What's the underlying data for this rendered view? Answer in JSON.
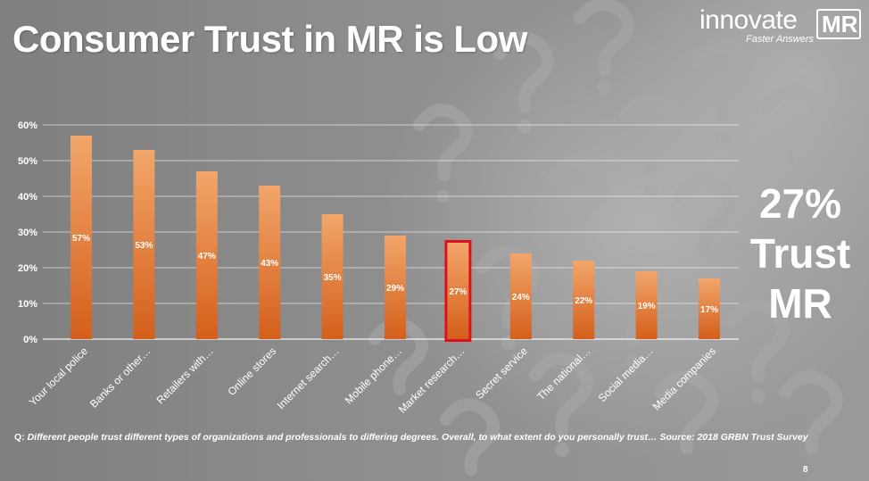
{
  "slide": {
    "title": "Consumer Trust in MR is Low",
    "page_number": "8",
    "callout": [
      "27%",
      "Trust",
      "MR"
    ]
  },
  "logo": {
    "word": "innovate",
    "boxed": "MR",
    "tagline": "Faster Answers"
  },
  "footnote": {
    "prefix": "Q: ",
    "text": "Different people trust different types of organizations and professionals to differing degrees.  Overall, to what extent do you personally trust… Source: 2018 GRBN Trust Survey"
  },
  "colors": {
    "bar_top": "#f2a66b",
    "bar_bottom": "#d45f1b",
    "highlight_border": "#e0101a",
    "grid": "#ffffff",
    "text": "#ffffff"
  },
  "icons": [
    "question-mark-pattern-icon"
  ],
  "chart_data": {
    "type": "bar",
    "title": "",
    "xlabel": "",
    "ylabel": "",
    "ylim": [
      0,
      0.6
    ],
    "yticks": [
      "0%",
      "10%",
      "20%",
      "30%",
      "40%",
      "50%",
      "60%"
    ],
    "grid": true,
    "legend": "none",
    "categories": [
      "Your local police",
      "Banks or other…",
      "Retailers with…",
      "Online stores",
      "Internet search…",
      "Mobile phone…",
      "Market research…",
      "Secret service",
      "The national…",
      "Social media…",
      "Media companies"
    ],
    "values": [
      0.57,
      0.53,
      0.47,
      0.43,
      0.35,
      0.29,
      0.27,
      0.24,
      0.22,
      0.19,
      0.17
    ],
    "data_labels": [
      "57%",
      "53%",
      "47%",
      "43%",
      "35%",
      "29%",
      "27%",
      "24%",
      "22%",
      "19%",
      "17%"
    ],
    "highlight_index": 6
  }
}
